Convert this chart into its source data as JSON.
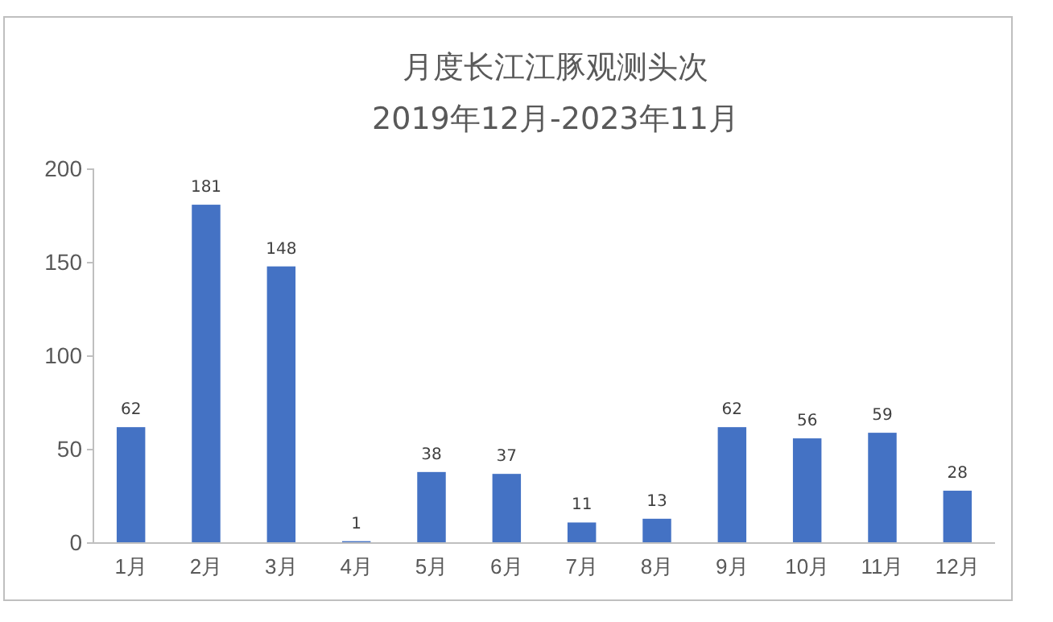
{
  "chart_data": {
    "type": "bar",
    "title": "月度长江江豚观测头次",
    "subtitle": "2019年12月-2023年11月",
    "categories": [
      "1月",
      "2月",
      "3月",
      "4月",
      "5月",
      "6月",
      "7月",
      "8月",
      "9月",
      "10月",
      "11月",
      "12月"
    ],
    "values": [
      62,
      181,
      148,
      1,
      38,
      37,
      11,
      13,
      62,
      56,
      59,
      28
    ],
    "color": "#4472c4",
    "ylim": [
      0,
      200
    ],
    "yticks": [
      0,
      50,
      100,
      150,
      200
    ],
    "grid": false,
    "data_labels": true
  }
}
